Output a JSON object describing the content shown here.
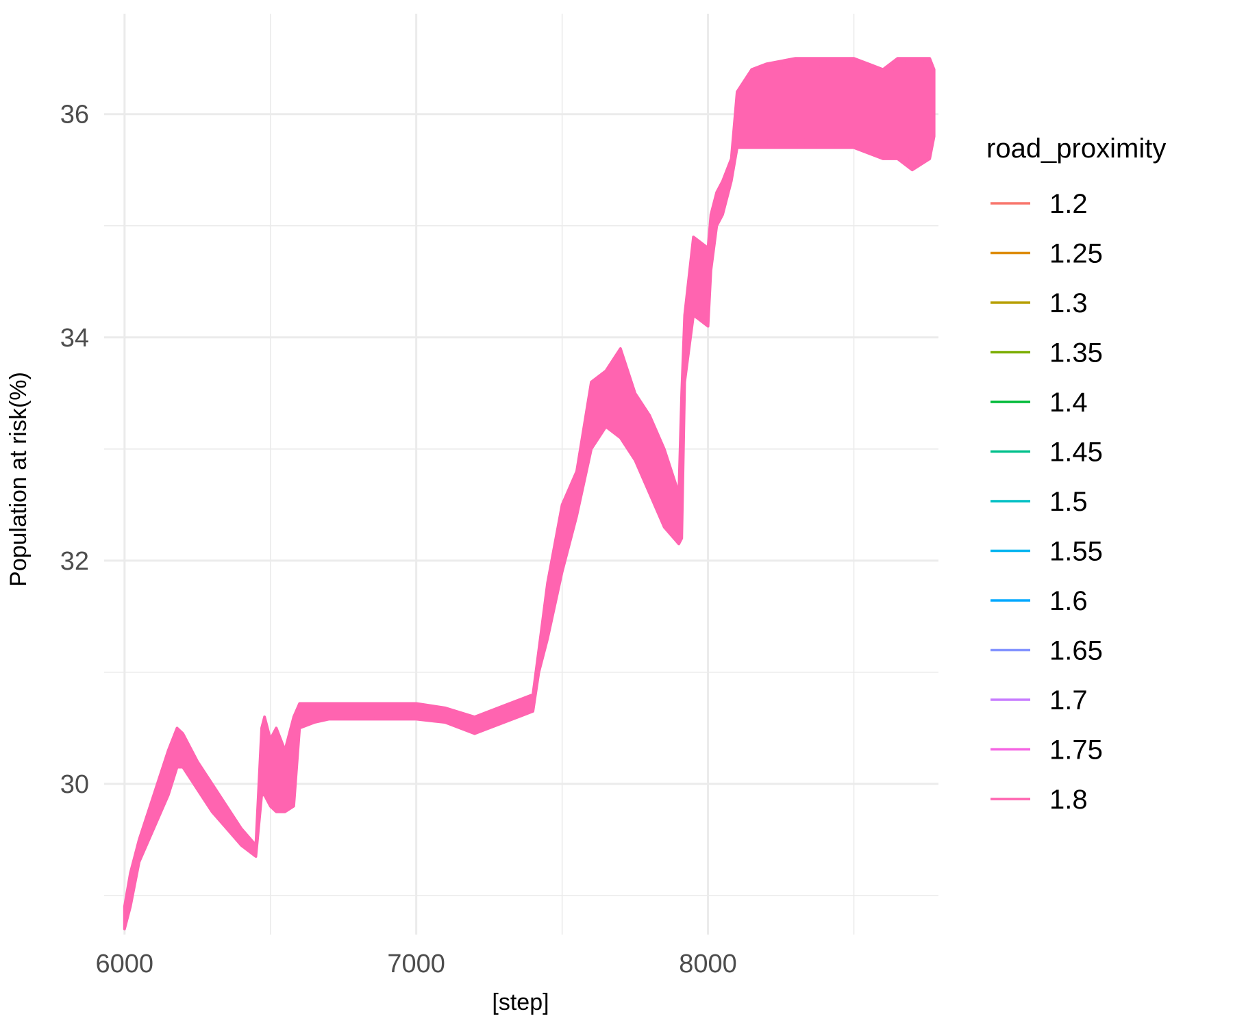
{
  "chart_data": {
    "type": "line",
    "title": "",
    "xlabel": "[step]",
    "ylabel": "Population at risk(%)",
    "xlim": [
      5930,
      8790
    ],
    "ylim": [
      28.65,
      36.9
    ],
    "x_ticks": [
      6000,
      7000,
      8000
    ],
    "x_minor_ticks": [
      6500,
      7500,
      8500
    ],
    "y_ticks": [
      30,
      32,
      34,
      36
    ],
    "y_minor_ticks": [
      29,
      31,
      33,
      35
    ],
    "grid": true,
    "legend": {
      "title": "road_proximity",
      "placement": "right",
      "entries": [
        {
          "label": "1.2",
          "color": "#F8766D"
        },
        {
          "label": "1.25",
          "color": "#DE8C00"
        },
        {
          "label": "1.3",
          "color": "#B79F00"
        },
        {
          "label": "1.35",
          "color": "#7CAE00"
        },
        {
          "label": "1.4",
          "color": "#00BA38"
        },
        {
          "label": "1.45",
          "color": "#00C08B"
        },
        {
          "label": "1.5",
          "color": "#00BFC4"
        },
        {
          "label": "1.55",
          "color": "#00B4F0"
        },
        {
          "label": "1.6",
          "color": "#00A9FF"
        },
        {
          "label": "1.65",
          "color": "#8494FF"
        },
        {
          "label": "1.7",
          "color": "#C77CFF"
        },
        {
          "label": "1.75",
          "color": "#F564E3"
        },
        {
          "label": "1.8",
          "color": "#FF64B0"
        }
      ]
    },
    "series": [
      {
        "name": "1.8",
        "color": "#FF64B0",
        "band": {
          "x": [
            6000,
            6020,
            6050,
            6100,
            6150,
            6180,
            6200,
            6250,
            6300,
            6350,
            6400,
            6450,
            6470,
            6480,
            6500,
            6520,
            6550,
            6580,
            6600,
            6650,
            6700,
            6800,
            6900,
            7000,
            7100,
            7200,
            7300,
            7350,
            7400,
            7420,
            7450,
            7500,
            7550,
            7600,
            7650,
            7700,
            7750,
            7800,
            7850,
            7900,
            7910,
            7920,
            7950,
            8000,
            8010,
            8030,
            8050,
            8080,
            8100,
            8150,
            8200,
            8300,
            8400,
            8500,
            8600,
            8650,
            8700,
            8760,
            8775
          ],
          "upper": [
            28.9,
            29.2,
            29.5,
            29.9,
            30.3,
            30.5,
            30.45,
            30.2,
            30.0,
            29.8,
            29.6,
            29.45,
            30.5,
            30.6,
            30.4,
            30.5,
            30.3,
            30.6,
            30.72,
            30.72,
            30.72,
            30.72,
            30.72,
            30.72,
            30.68,
            30.6,
            30.7,
            30.75,
            30.8,
            31.2,
            31.8,
            32.5,
            32.8,
            33.6,
            33.7,
            33.9,
            33.5,
            33.3,
            33.0,
            32.6,
            33.5,
            34.2,
            34.9,
            34.8,
            35.1,
            35.3,
            35.4,
            35.6,
            36.2,
            36.4,
            36.45,
            36.5,
            36.5,
            36.5,
            36.4,
            36.5,
            36.5,
            36.5,
            36.4
          ],
          "lower": [
            28.7,
            28.9,
            29.3,
            29.6,
            29.9,
            30.15,
            30.15,
            29.95,
            29.75,
            29.6,
            29.45,
            29.35,
            29.9,
            29.9,
            29.8,
            29.75,
            29.75,
            29.8,
            30.5,
            30.55,
            30.58,
            30.58,
            30.58,
            30.58,
            30.55,
            30.45,
            30.55,
            30.6,
            30.65,
            31.0,
            31.3,
            31.9,
            32.4,
            33.0,
            33.2,
            33.1,
            32.9,
            32.6,
            32.3,
            32.15,
            32.2,
            33.6,
            34.2,
            34.1,
            34.6,
            35.0,
            35.1,
            35.4,
            35.7,
            35.7,
            35.7,
            35.7,
            35.7,
            35.7,
            35.6,
            35.6,
            35.5,
            35.6,
            35.8
          ]
        }
      }
    ]
  }
}
